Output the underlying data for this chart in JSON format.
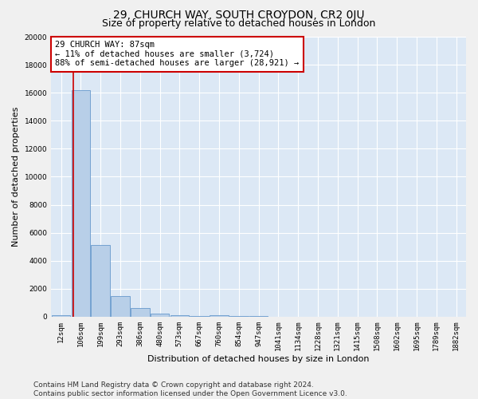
{
  "title": "29, CHURCH WAY, SOUTH CROYDON, CR2 0JU",
  "subtitle": "Size of property relative to detached houses in London",
  "xlabel": "Distribution of detached houses by size in London",
  "ylabel": "Number of detached properties",
  "categories": [
    "12sqm",
    "106sqm",
    "199sqm",
    "293sqm",
    "386sqm",
    "480sqm",
    "573sqm",
    "667sqm",
    "760sqm",
    "854sqm",
    "947sqm",
    "1041sqm",
    "1134sqm",
    "1228sqm",
    "1321sqm",
    "1415sqm",
    "1508sqm",
    "1602sqm",
    "1695sqm",
    "1789sqm",
    "1882sqm"
  ],
  "values": [
    100,
    16200,
    5100,
    1500,
    600,
    200,
    100,
    50,
    120,
    50,
    30,
    20,
    20,
    20,
    10,
    10,
    10,
    10,
    10,
    10,
    10
  ],
  "bar_color": "#b8cfe8",
  "bar_edge_color": "#6699cc",
  "property_label": "29 CHURCH WAY: 87sqm",
  "annotation_line1": "← 11% of detached houses are smaller (3,724)",
  "annotation_line2": "88% of semi-detached houses are larger (28,921) →",
  "vline_color": "#cc0000",
  "vline_x_index": 1,
  "annotation_box_edge": "#cc0000",
  "ylim": [
    0,
    20000
  ],
  "yticks": [
    0,
    2000,
    4000,
    6000,
    8000,
    10000,
    12000,
    14000,
    16000,
    18000,
    20000
  ],
  "background_color": "#dce8f5",
  "grid_color": "#ffffff",
  "footer_line1": "Contains HM Land Registry data © Crown copyright and database right 2024.",
  "footer_line2": "Contains public sector information licensed under the Open Government Licence v3.0.",
  "title_fontsize": 10,
  "subtitle_fontsize": 9,
  "axis_label_fontsize": 8,
  "tick_fontsize": 6.5,
  "annotation_fontsize": 7.5,
  "footer_fontsize": 6.5
}
